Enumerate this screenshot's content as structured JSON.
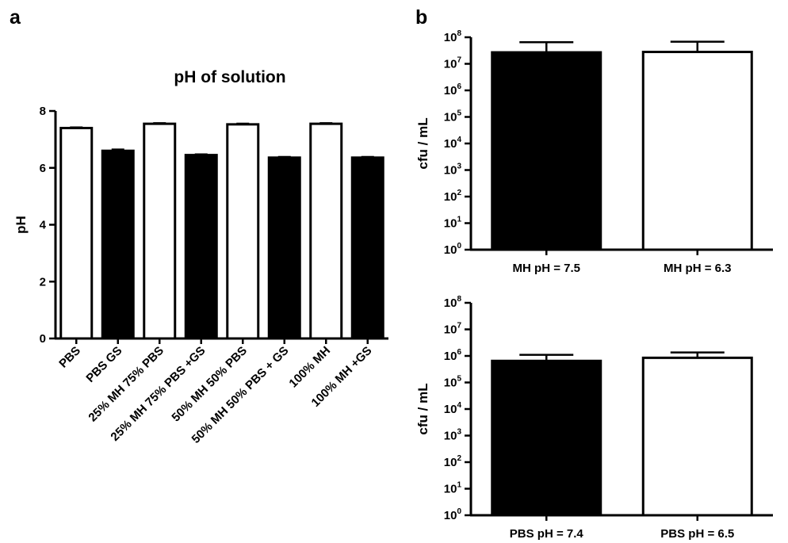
{
  "panel_letters": [
    "a",
    "b"
  ],
  "chart_data": [
    {
      "id": "a",
      "type": "bar",
      "title": "pH of solution",
      "xlabel": "",
      "ylabel": "pH",
      "ylim": [
        0,
        8
      ],
      "yticks": [
        "0",
        "2",
        "4",
        "6",
        "8"
      ],
      "yscale": "linear",
      "grid": false,
      "categories": [
        "PBS",
        "PBS GS",
        "25% MH 75% PBS",
        "25% MH 75% PBS +GS",
        "50% MH 50% PBS",
        "50% MH 50% PBS + GS",
        "100% MH",
        "100% MH +GS"
      ],
      "values": [
        7.4,
        6.6,
        7.55,
        6.45,
        7.53,
        6.36,
        7.55,
        6.36
      ],
      "errors": [
        0.03,
        0.05,
        0.03,
        0.03,
        0.03,
        0.03,
        0.03,
        0.03
      ],
      "fills": [
        "#ffffff",
        "#000000",
        "#ffffff",
        "#000000",
        "#ffffff",
        "#000000",
        "#ffffff",
        "#000000"
      ]
    },
    {
      "id": "b-top",
      "type": "bar",
      "title": "",
      "xlabel": "",
      "ylabel": "cfu / mL",
      "yscale": "log",
      "ylim": [
        1,
        100000000
      ],
      "yticks": [
        {
          "base": "10",
          "exp": "0"
        },
        {
          "base": "10",
          "exp": "1"
        },
        {
          "base": "10",
          "exp": "2"
        },
        {
          "base": "10",
          "exp": "3"
        },
        {
          "base": "10",
          "exp": "4"
        },
        {
          "base": "10",
          "exp": "5"
        },
        {
          "base": "10",
          "exp": "6"
        },
        {
          "base": "10",
          "exp": "7"
        },
        {
          "base": "10",
          "exp": "8"
        }
      ],
      "grid": false,
      "categories": [
        "MH pH = 7.5",
        "MH pH = 6.3"
      ],
      "values": [
        27000000,
        28000000
      ],
      "error_upper": [
        65000000,
        68000000
      ],
      "fills": [
        "#000000",
        "#ffffff"
      ]
    },
    {
      "id": "b-bottom",
      "type": "bar",
      "title": "",
      "xlabel": "",
      "ylabel": "cfu / mL",
      "yscale": "log",
      "ylim": [
        1,
        100000000
      ],
      "yticks": [
        {
          "base": "10",
          "exp": "0"
        },
        {
          "base": "10",
          "exp": "1"
        },
        {
          "base": "10",
          "exp": "2"
        },
        {
          "base": "10",
          "exp": "3"
        },
        {
          "base": "10",
          "exp": "4"
        },
        {
          "base": "10",
          "exp": "5"
        },
        {
          "base": "10",
          "exp": "6"
        },
        {
          "base": "10",
          "exp": "7"
        },
        {
          "base": "10",
          "exp": "8"
        }
      ],
      "grid": false,
      "categories": [
        "PBS pH = 7.4",
        "PBS pH = 6.5"
      ],
      "values": [
        650000,
        850000
      ],
      "error_upper": [
        1100000,
        1350000
      ],
      "fills": [
        "#000000",
        "#ffffff"
      ]
    }
  ]
}
